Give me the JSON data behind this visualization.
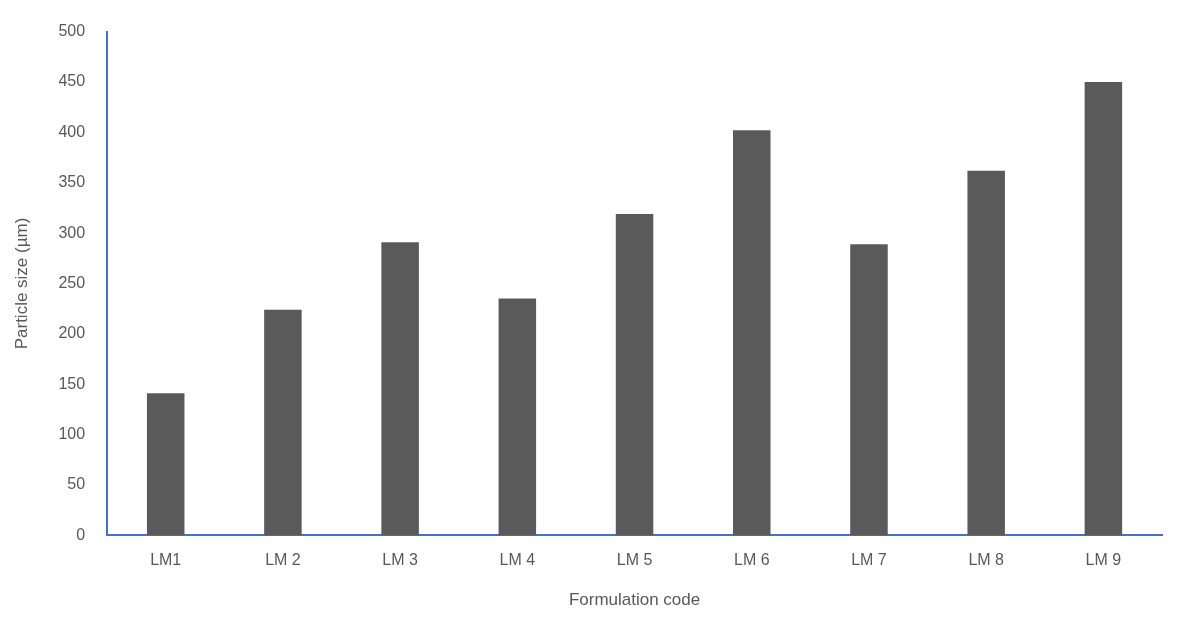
{
  "chart_data": {
    "type": "bar",
    "xlabel": "Formulation code",
    "ylabel": "Particle size (µm)",
    "categories": [
      "LM1",
      "LM 2",
      "LM 3",
      "LM 4",
      "LM 5",
      "LM 6",
      "LM 7",
      "LM 8",
      "LM 9"
    ],
    "values": [
      141,
      224,
      291,
      235,
      319,
      402,
      289,
      362,
      450
    ],
    "color": "#5a5a5a",
    "ylim": [
      0,
      500
    ],
    "yticks": [
      0,
      50,
      100,
      150,
      200,
      250,
      300,
      350,
      400,
      450,
      500
    ],
    "grid": false,
    "legend": false
  }
}
